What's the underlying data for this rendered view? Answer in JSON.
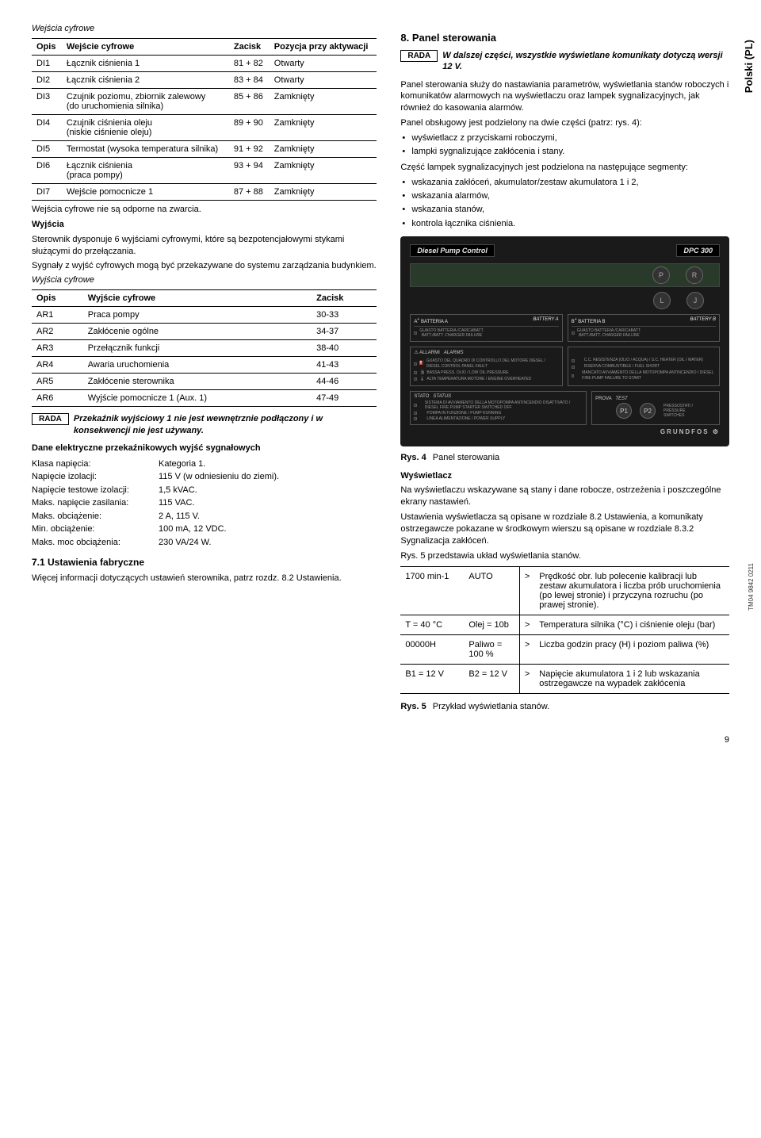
{
  "side_label": "Polski (PL)",
  "tm_label": "TM04 9842 0211",
  "page_number": "9",
  "left": {
    "heading_inputs": "Wejścia cyfrowe",
    "table_inputs": {
      "headers": [
        "Opis",
        "Wejście cyfrowe",
        "Zacisk",
        "Pozycja przy aktywacji"
      ],
      "rows": [
        [
          "DI1",
          "Łącznik ciśnienia 1",
          "81 + 82",
          "Otwarty"
        ],
        [
          "DI2",
          "Łącznik ciśnienia 2",
          "83 + 84",
          "Otwarty"
        ],
        [
          "DI3",
          "Czujnik poziomu, zbiornik zalewowy\n(do uruchomienia silnika)",
          "85 + 86",
          "Zamknięty"
        ],
        [
          "DI4",
          "Czujnik ciśnienia oleju\n(niskie ciśnienie oleju)",
          "89 + 90",
          "Zamknięty"
        ],
        [
          "DI5",
          "Termostat (wysoka temperatura silnika)",
          "91 + 92",
          "Zamknięty"
        ],
        [
          "DI6",
          "Łącznik ciśnienia\n(praca pompy)",
          "93 + 94",
          "Zamknięty"
        ],
        [
          "DI7",
          "Wejście pomocnicze 1",
          "87 + 88",
          "Zamknięty"
        ]
      ]
    },
    "note_inputs": "Wejścia cyfrowe nie są odporne na zwarcia.",
    "heading_outputs_bold": "Wyjścia",
    "para_outputs_1": "Sterownik dysponuje 6 wyjściami cyfrowymi, które są bezpotencjałowymi stykami służącymi do przełączania.",
    "para_outputs_2": "Sygnały z wyjść cyfrowych mogą być przekazywane do systemu zarządzania budynkiem.",
    "heading_outputs_italic": "Wyjścia cyfrowe",
    "table_outputs": {
      "headers": [
        "Opis",
        "Wyjście cyfrowe",
        "Zacisk"
      ],
      "rows": [
        [
          "AR1",
          "Praca pompy",
          "30-33"
        ],
        [
          "AR2",
          "Zakłócenie ogólne",
          "34-37"
        ],
        [
          "AR3",
          "Przełącznik funkcji",
          "38-40"
        ],
        [
          "AR4",
          "Awaria uruchomienia",
          "41-43"
        ],
        [
          "AR5",
          "Zakłócenie sterownika",
          "44-46"
        ],
        [
          "AR6",
          "Wyjście pomocnicze 1 (Aux. 1)",
          "47-49"
        ]
      ]
    },
    "rada_label": "RADA",
    "rada_output_text": "Przekaźnik wyjściowy 1 nie jest wewnętrznie podłączony i w konsekwencji nie jest używany.",
    "heading_elec": "Dane elektryczne przekaźnikowych wyjść sygnałowych",
    "specs": [
      [
        "Klasa napięcia:",
        "Kategoria 1."
      ],
      [
        "Napięcie izolacji:",
        "115 V (w odniesieniu do ziemi)."
      ],
      [
        "Napięcie testowe izolacji:",
        "1,5 kVAC."
      ],
      [
        "Maks. napięcie zasilania:",
        "115 VAC."
      ],
      [
        "Maks. obciążenie:",
        "2 A, 115 V."
      ],
      [
        "Min. obciążenie:",
        "100 mA, 12 VDC."
      ],
      [
        "Maks. moc obciążenia:",
        "230 VA/24 W."
      ]
    ],
    "heading_71": "7.1 Ustawienia fabryczne",
    "para_71": "Więcej informacji dotyczących ustawień sterownika, patrz rozdz. 8.2 Ustawienia."
  },
  "right": {
    "heading_8": "8. Panel sterowania",
    "rada_label": "RADA",
    "rada_8_text": "W dalszej części, wszystkie wyświetlane komunikaty dotyczą wersji 12 V.",
    "para_8_1": "Panel sterowania służy do nastawiania parametrów, wyświetlania stanów roboczych i komunikatów alarmowych na wyświetlaczu oraz lampek sygnalizacyjnych, jak również do kasowania alarmów.",
    "para_8_2": "Panel obsługowy jest podzielony na dwie części (patrz: rys. 4):",
    "bullets_8a": [
      "wyświetlacz z przyciskami roboczymi,",
      "lampki sygnalizujące zakłócenia i stany."
    ],
    "para_8_3": "Część lampek sygnalizacyjnych jest podzielona na następujące segmenty:",
    "bullets_8b": [
      "wskazania zakłóceń, akumulator/zestaw akumulatora 1 i 2,",
      "wskazania alarmów,",
      "wskazania stanów,",
      "kontrola łącznika ciśnienia."
    ],
    "panel": {
      "title": "Diesel Pump Control",
      "model": "DPC 300",
      "btn_p": "P",
      "btn_r": "R",
      "btn_l": "L",
      "btn_j": "J",
      "batt_a_label": "BATTERIA A",
      "batt_a_en": "BATTERY A",
      "batt_b_label": "BATTERIA B",
      "batt_b_en": "BATTERY B",
      "batt_sub1": "GUASTO BATTERIA /CARICABATT.",
      "batt_sub2": "BATT./BATT. CHARGER FAILURE",
      "alarm_header": "ALLARMI",
      "alarm_header_en": "ALARMS",
      "alarm_items_l": [
        "GUASTO DEL QUADRO DI CONTROLLO DEL MOTORE DIESEL / DIESEL CONTROL PANEL FAULT",
        "BASSA PRESS. OLIO / LOW OIL PRESSURE",
        "ALTA TEMPERATURA MOTORE / ENGINE OVERHEATED"
      ],
      "alarm_items_r": [
        "C.C. RESISTENZA (OLIO / ACQUA) / S.C. HEATER (OIL / WATER)",
        "RISERVA COMBUSTIBILE / FUEL SHORT",
        "MANCATO AVVIAMENTO DELLA MOTOPOMPA ANTINCENDIO / DIESEL FIRE PUMP FAILURE TO START"
      ],
      "status_header": "STATO",
      "status_header_en": "STATUS",
      "status_items": [
        "SISTEMA DI AVVIAMENTO DELLA MOTOPOMPA ANTINCENDIO DISATTIVATO / DIESEL FIRE PUMP STARTER SWITCHED OFF",
        "POMPA IN FUNZIONE / PUMP RUNNING",
        "LINEA ALIMENTAZIONE / POWER SUPPLY"
      ],
      "test_header": "PROVA",
      "test_header_en": "TEST",
      "p1": "P1",
      "p2": "P2",
      "test_sub": "PRESSOSTATI / PRESSURE SWITCHES",
      "grundfos": "GRUNDFOS"
    },
    "fig4_num": "Rys. 4",
    "fig4_cap": "Panel sterowania",
    "heading_display": "Wyświetlacz",
    "para_d1": "Na wyświetlaczu wskazywane są stany i dane robocze, ostrzeżenia i poszczególne ekrany nastawień.",
    "para_d2": "Ustawienia wyświetlacza są opisane w rozdziale 8.2 Ustawienia, a komunikaty ostrzegawcze pokazane w środkowym wierszu są opisane w rozdziale 8.3.2 Sygnalizacja zakłóceń.",
    "para_d3": "Rys. 5 przedstawia układ wyświetlania stanów.",
    "display_table": {
      "rows": [
        [
          "1700 min-1",
          "AUTO",
          ">",
          "Prędkość obr. lub polecenie kalibracji lub zestaw akumulatora i liczba prób uruchomienia (po lewej stronie) i przyczyna rozruchu (po prawej stronie)."
        ],
        [
          "T = 40 °C",
          "Olej = 10b",
          ">",
          "Temperatura silnika (°C) i ciśnienie oleju (bar)"
        ],
        [
          "00000H",
          "Paliwo = 100 %",
          ">",
          "Liczba godzin pracy (H) i poziom paliwa (%)"
        ],
        [
          "B1 = 12 V",
          "B2 = 12 V",
          ">",
          "Napięcie akumulatora 1 i 2 lub wskazania ostrzegawcze na wypadek zakłócenia"
        ]
      ]
    },
    "fig5_num": "Rys. 5",
    "fig5_cap": "Przykład wyświetlania stanów."
  }
}
